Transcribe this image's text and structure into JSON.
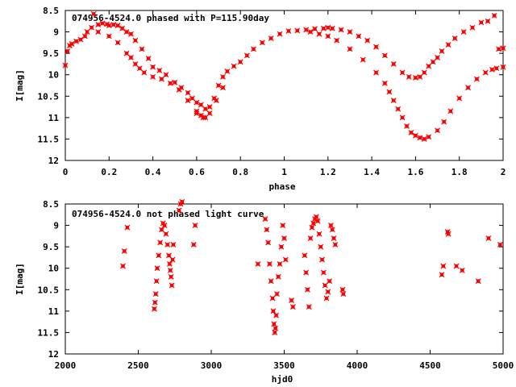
{
  "chart_data": [
    {
      "type": "scatter",
      "title": "074956-4524.0 phased with P=115.90day",
      "xlabel": "phase",
      "ylabel": "I[mag]",
      "xlim": [
        0,
        2
      ],
      "ylim": [
        8.5,
        12
      ],
      "y_inverted": true,
      "grid": false,
      "marker_color": "#ff0000",
      "xticks": [
        "0",
        "0.2",
        "0.4",
        "0.6",
        "0.8",
        "1",
        "1.2",
        "1.4",
        "1.6",
        "1.8",
        "2"
      ],
      "xtick_values": [
        0,
        0.2,
        0.4,
        0.6,
        0.8,
        1,
        1.2,
        1.4,
        1.6,
        1.8,
        2
      ],
      "yticks": [
        "8.5",
        "9",
        "9.5",
        "10",
        "10.5",
        "11",
        "11.5",
        "12"
      ],
      "ytick_values": [
        8.5,
        9,
        9.5,
        10,
        10.5,
        11,
        11.5,
        12
      ],
      "x": [
        0.0,
        0.01,
        0.02,
        0.03,
        0.05,
        0.07,
        0.09,
        0.1,
        0.12,
        0.13,
        0.15,
        0.17,
        0.19,
        0.2,
        0.22,
        0.24,
        0.26,
        0.28,
        0.3,
        0.32,
        0.35,
        0.38,
        0.4,
        0.43,
        0.46,
        0.5,
        0.53,
        0.56,
        0.58,
        0.6,
        0.62,
        0.64,
        0.66,
        0.68,
        0.7,
        0.72,
        0.74,
        0.77,
        0.8,
        0.83,
        0.86,
        0.9,
        0.94,
        0.98,
        1.02,
        1.06,
        1.1,
        1.14,
        1.18,
        1.2,
        1.22,
        1.26,
        1.3,
        1.34,
        1.38,
        1.42,
        1.46,
        1.5,
        1.54,
        1.57,
        1.6,
        1.62,
        1.64,
        1.66,
        1.68,
        1.7,
        1.72,
        1.75,
        1.78,
        1.82,
        1.86,
        1.9,
        1.93,
        1.96,
        1.98,
        2.0,
        0.15,
        0.2,
        0.24,
        0.28,
        0.3,
        0.32,
        0.34,
        0.36,
        0.4,
        0.44,
        0.48,
        0.52,
        0.56,
        0.6,
        0.62,
        0.64,
        1.12,
        1.16,
        1.2,
        1.24,
        1.3,
        1.36,
        1.42,
        1.46,
        1.48,
        1.5,
        1.52,
        1.54,
        1.56,
        1.58,
        1.6,
        1.62,
        1.64,
        1.66,
        1.7,
        1.73,
        1.76,
        1.8,
        1.84,
        1.88,
        1.92,
        1.95,
        1.97,
        2.0,
        0.6,
        0.63,
        0.66,
        0.69,
        0.72
      ],
      "y": [
        9.78,
        9.45,
        9.32,
        9.28,
        9.22,
        9.18,
        9.1,
        9.0,
        8.9,
        8.58,
        8.83,
        8.8,
        8.82,
        8.85,
        8.83,
        8.85,
        8.92,
        9.0,
        9.05,
        9.2,
        9.4,
        9.62,
        9.82,
        9.9,
        10.0,
        10.18,
        10.3,
        10.42,
        10.55,
        10.65,
        10.7,
        10.8,
        10.75,
        10.55,
        10.25,
        10.05,
        9.92,
        9.8,
        9.7,
        9.55,
        9.4,
        9.25,
        9.15,
        9.05,
        8.98,
        8.97,
        8.95,
        8.93,
        8.92,
        8.9,
        8.92,
        8.95,
        9.0,
        9.1,
        9.2,
        9.35,
        9.55,
        9.75,
        9.95,
        10.05,
        10.07,
        10.05,
        9.95,
        9.8,
        9.7,
        9.6,
        9.45,
        9.3,
        9.15,
        9.0,
        8.9,
        8.78,
        8.75,
        8.62,
        9.4,
        9.38,
        9.0,
        9.1,
        9.25,
        9.5,
        9.6,
        9.75,
        9.85,
        9.95,
        10.05,
        10.1,
        10.2,
        10.35,
        10.6,
        10.9,
        10.95,
        11.0,
        9.0,
        9.05,
        9.1,
        9.2,
        9.4,
        9.65,
        9.95,
        10.2,
        10.4,
        10.6,
        10.8,
        11.0,
        11.2,
        11.35,
        11.42,
        11.47,
        11.5,
        11.45,
        11.3,
        11.1,
        10.85,
        10.55,
        10.3,
        10.1,
        9.95,
        9.88,
        9.85,
        9.82,
        10.85,
        11.0,
        10.9,
        10.6,
        10.3
      ]
    },
    {
      "type": "scatter",
      "title": "074956-4524.0 not phased light curve",
      "xlabel": "hjd0",
      "ylabel": "I[mag]",
      "xlim": [
        2000,
        5000
      ],
      "ylim": [
        8.5,
        12
      ],
      "y_inverted": true,
      "grid": false,
      "marker_color": "#ff0000",
      "xticks": [
        "2000",
        "2500",
        "3000",
        "3500",
        "4000",
        "4500",
        "5000"
      ],
      "xtick_values": [
        2000,
        2500,
        3000,
        3500,
        4000,
        4500,
        5000
      ],
      "yticks": [
        "8.5",
        "9",
        "9.5",
        "10",
        "10.5",
        "11",
        "11.5",
        "12"
      ],
      "ytick_values": [
        8.5,
        9,
        9.5,
        10,
        10.5,
        11,
        11.5,
        12
      ],
      "x": [
        2395,
        2405,
        2425,
        2610,
        2615,
        2620,
        2625,
        2630,
        2640,
        2650,
        2660,
        2670,
        2680,
        2690,
        2700,
        2710,
        2715,
        2720,
        2725,
        2730,
        2735,
        2740,
        2780,
        2790,
        2800,
        2880,
        2890,
        3320,
        3370,
        3380,
        3390,
        3400,
        3410,
        3420,
        3425,
        3430,
        3435,
        3440,
        3445,
        3450,
        3460,
        3470,
        3480,
        3490,
        3500,
        3510,
        3550,
        3560,
        3640,
        3650,
        3660,
        3670,
        3680,
        3690,
        3700,
        3710,
        3720,
        3730,
        3740,
        3750,
        3760,
        3770,
        3780,
        3790,
        3800,
        3810,
        3820,
        3830,
        3840,
        3850,
        3900,
        3905,
        4580,
        4590,
        4620,
        4625,
        4680,
        4720,
        4830,
        4900,
        4980
      ],
      "y": [
        9.95,
        9.6,
        9.05,
        10.95,
        10.8,
        10.6,
        10.3,
        10.0,
        9.7,
        9.4,
        9.1,
        8.95,
        9.0,
        9.2,
        9.45,
        9.7,
        9.9,
        10.05,
        10.2,
        10.4,
        9.8,
        9.45,
        8.65,
        8.5,
        8.45,
        9.45,
        9.0,
        9.9,
        8.85,
        9.1,
        9.4,
        9.9,
        10.3,
        10.7,
        11.0,
        11.3,
        11.5,
        11.4,
        11.1,
        10.6,
        10.2,
        9.9,
        9.5,
        9.0,
        9.3,
        9.8,
        10.75,
        10.9,
        9.7,
        10.1,
        10.5,
        10.9,
        9.3,
        9.05,
        8.95,
        8.85,
        8.8,
        8.9,
        9.2,
        9.5,
        9.8,
        10.1,
        10.4,
        10.7,
        10.55,
        10.3,
        9.0,
        9.1,
        9.3,
        9.45,
        10.5,
        10.6,
        10.15,
        9.95,
        9.15,
        9.2,
        9.95,
        10.05,
        10.3,
        9.3,
        9.45
      ]
    }
  ]
}
